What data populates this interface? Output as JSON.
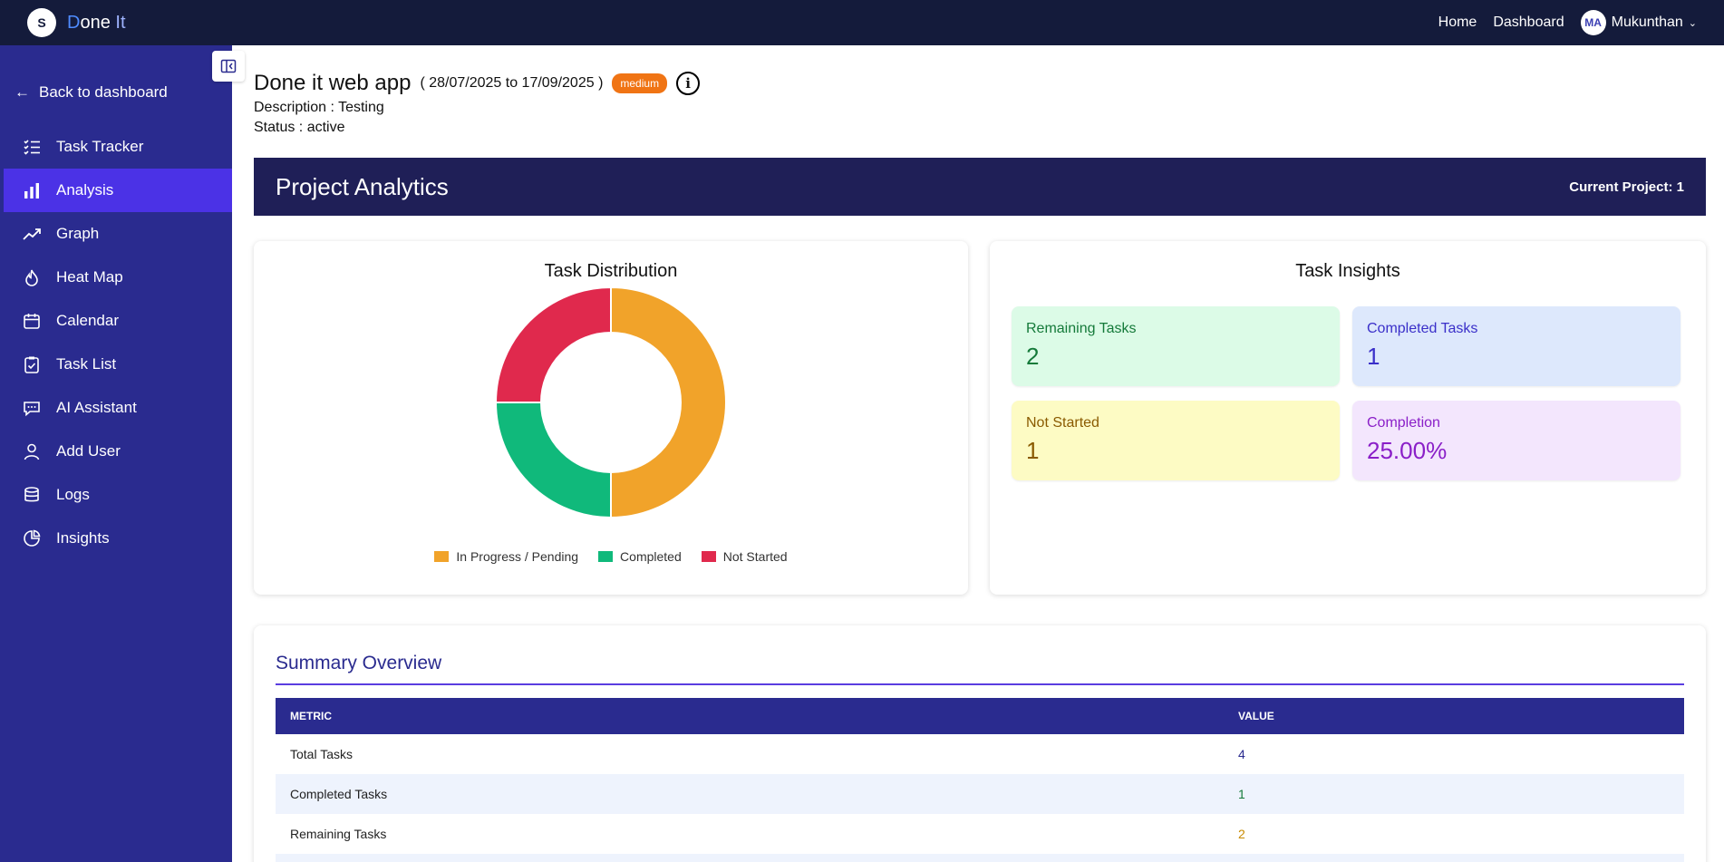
{
  "header": {
    "logo_text": "S",
    "brand_first": "D",
    "brand_middle": "one ",
    "brand_last": "It",
    "nav": [
      "Home",
      "Dashboard"
    ],
    "user_initials": "MA",
    "user_name": "Mukunthan"
  },
  "sidebar": {
    "back_label": "Back to dashboard",
    "items": [
      {
        "label": "Task Tracker",
        "icon": "list-check-icon",
        "active": false
      },
      {
        "label": "Analysis",
        "icon": "bar-chart-icon",
        "active": true
      },
      {
        "label": "Graph",
        "icon": "trend-line-icon",
        "active": false
      },
      {
        "label": "Heat Map",
        "icon": "flame-icon",
        "active": false
      },
      {
        "label": "Calendar",
        "icon": "calendar-icon",
        "active": false
      },
      {
        "label": "Task List",
        "icon": "clipboard-check-icon",
        "active": false
      },
      {
        "label": "AI Assistant",
        "icon": "chat-icon",
        "active": false
      },
      {
        "label": "Add User",
        "icon": "user-icon",
        "active": false
      },
      {
        "label": "Logs",
        "icon": "database-icon",
        "active": false
      },
      {
        "label": "Insights",
        "icon": "pie-icon",
        "active": false
      }
    ]
  },
  "project": {
    "title": "Done it web app",
    "dates": "( 28/07/2025 to 17/09/2025 )",
    "priority": "medium",
    "description": "Description : Testing",
    "status": "Status : active"
  },
  "banner": {
    "title": "Project Analytics",
    "current_project": "Current Project: 1"
  },
  "distribution": {
    "title": "Task Distribution"
  },
  "chart_data": {
    "type": "pie",
    "title": "Task Distribution",
    "categories": [
      "In Progress / Pending",
      "Completed",
      "Not Started"
    ],
    "values": [
      2,
      1,
      1
    ],
    "colors": [
      "#f1a32a",
      "#10b97b",
      "#e0294d"
    ],
    "legend": "bottom"
  },
  "insights": {
    "title": "Task Insights",
    "cards": [
      {
        "label": "Remaining Tasks",
        "value": "2",
        "bg": "#dcfbe7",
        "color": "#157a3a"
      },
      {
        "label": "Completed Tasks",
        "value": "1",
        "bg": "#dde8fc",
        "color": "#3a2fc9"
      },
      {
        "label": "Not Started",
        "value": "1",
        "bg": "#fdfbc4",
        "color": "#8a5a00"
      },
      {
        "label": "Completion",
        "value": "25.00%",
        "bg": "#f3e6fd",
        "color": "#8a1fc8"
      }
    ]
  },
  "summary": {
    "title": "Summary Overview",
    "headers": [
      "METRIC",
      "VALUE"
    ],
    "rows": [
      {
        "metric": "Total Tasks",
        "value": "4",
        "color": "#2a2b8f"
      },
      {
        "metric": "Completed Tasks",
        "value": "1",
        "color": "#157a3a"
      },
      {
        "metric": "Remaining Tasks",
        "value": "2",
        "color": "#c88a00"
      }
    ]
  }
}
